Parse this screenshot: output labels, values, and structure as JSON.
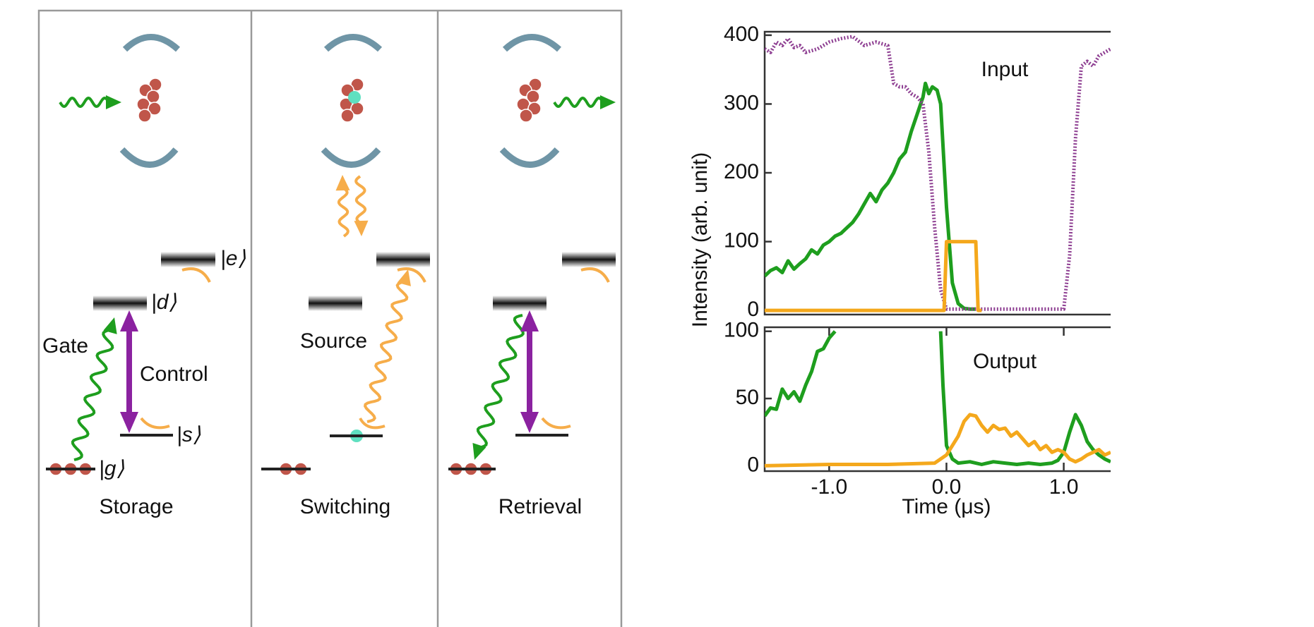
{
  "diagram": {
    "captions": [
      "Storage",
      "Switching",
      "Retrieval"
    ],
    "levels": {
      "e": "|e⟩",
      "d": "|d⟩",
      "s": "|s⟩",
      "g": "|g⟩"
    },
    "labels": {
      "gate": "Gate",
      "control": "Control",
      "source": "Source"
    }
  },
  "chart_data": [
    {
      "type": "line",
      "annotation": "Input",
      "ylabel": "Intensity (arb. unit)",
      "xlim": [
        -1.55,
        1.4
      ],
      "ylim": [
        -6,
        405
      ],
      "yticks": [
        0,
        100,
        200,
        300,
        400
      ],
      "series": [
        {
          "color": "#1e9e1e",
          "x": [
            -1.55,
            -1.5,
            -1.45,
            -1.4,
            -1.35,
            -1.3,
            -1.25,
            -1.2,
            -1.15,
            -1.1,
            -1.05,
            -1.0,
            -0.95,
            -0.9,
            -0.85,
            -0.8,
            -0.75,
            -0.7,
            -0.65,
            -0.6,
            -0.55,
            -0.5,
            -0.45,
            -0.4,
            -0.35,
            -0.3,
            -0.25,
            -0.2,
            -0.18,
            -0.15,
            -0.12,
            -0.08,
            -0.05,
            0.0,
            0.05,
            0.1,
            0.15,
            0.2,
            0.25
          ],
          "values": [
            50,
            58,
            62,
            55,
            72,
            60,
            68,
            75,
            88,
            82,
            95,
            100,
            108,
            112,
            120,
            128,
            140,
            155,
            170,
            158,
            175,
            185,
            200,
            220,
            230,
            260,
            285,
            310,
            330,
            315,
            325,
            320,
            300,
            150,
            40,
            10,
            3,
            2,
            2
          ]
        },
        {
          "color": "#8e3f92",
          "style": "dotted",
          "x": [
            -1.55,
            -1.5,
            -1.45,
            -1.4,
            -1.35,
            -1.3,
            -1.25,
            -1.2,
            -1.1,
            -1.0,
            -0.9,
            -0.8,
            -0.7,
            -0.6,
            -0.5,
            -0.45,
            -0.4,
            -0.35,
            -0.3,
            -0.25,
            -0.2,
            -0.15,
            -0.1,
            -0.05,
            0.0,
            0.5,
            1.0,
            1.05,
            1.1,
            1.15,
            1.2,
            1.25,
            1.3,
            1.35,
            1.4
          ],
          "values": [
            380,
            375,
            390,
            385,
            395,
            382,
            385,
            375,
            380,
            390,
            395,
            398,
            385,
            390,
            385,
            330,
            325,
            325,
            315,
            310,
            300,
            230,
            120,
            30,
            2,
            2,
            2,
            80,
            250,
            355,
            362,
            355,
            370,
            375,
            380
          ]
        },
        {
          "color": "#f4a81c",
          "x": [
            -1.55,
            -0.02,
            0.0,
            0.25,
            0.27,
            0.3
          ],
          "values": [
            0,
            0,
            100,
            100,
            0,
            0
          ]
        }
      ]
    },
    {
      "type": "line",
      "annotation": "Output",
      "xlabel": "Time (μs)",
      "xlim": [
        -1.55,
        1.4
      ],
      "ylim": [
        -4,
        103
      ],
      "yticks": [
        0,
        50,
        100
      ],
      "xticks": [
        {
          "value": -1,
          "label": "-1.0"
        },
        {
          "value": 0,
          "label": "0.0"
        },
        {
          "value": 1,
          "label": "1.0"
        }
      ],
      "series": [
        {
          "color": "#1e9e1e",
          "x": [
            -1.55,
            -1.5,
            -1.45,
            -1.4,
            -1.35,
            -1.3,
            -1.25,
            -1.2,
            -1.15,
            -1.1,
            -1.05,
            -1.0,
            -0.95,
            -0.5,
            -0.05,
            -0.03,
            0.0,
            0.05,
            0.1,
            0.2,
            0.3,
            0.4,
            0.5,
            0.6,
            0.7,
            0.8,
            0.9,
            0.95,
            1.0,
            1.05,
            1.1,
            1.15,
            1.2,
            1.25,
            1.3,
            1.35,
            1.4
          ],
          "values": [
            37,
            43,
            42,
            57,
            50,
            55,
            48,
            60,
            70,
            85,
            87,
            95,
            100,
            null,
            100,
            60,
            15,
            5,
            2,
            3,
            1,
            3,
            2,
            1,
            2,
            1,
            2,
            4,
            10,
            25,
            38,
            30,
            18,
            12,
            8,
            5,
            3
          ]
        },
        {
          "color": "#f4a81c",
          "x": [
            -1.55,
            -1.0,
            -0.5,
            -0.1,
            0.0,
            0.05,
            0.1,
            0.15,
            0.2,
            0.25,
            0.3,
            0.35,
            0.4,
            0.45,
            0.5,
            0.55,
            0.6,
            0.65,
            0.7,
            0.75,
            0.8,
            0.85,
            0.9,
            0.95,
            1.0,
            1.05,
            1.1,
            1.15,
            1.2,
            1.25,
            1.3,
            1.35,
            1.4
          ],
          "values": [
            0,
            1,
            1,
            2,
            8,
            15,
            22,
            33,
            38,
            37,
            30,
            25,
            30,
            27,
            28,
            22,
            25,
            20,
            15,
            18,
            12,
            15,
            10,
            12,
            10,
            5,
            3,
            5,
            8,
            10,
            12,
            8,
            10
          ]
        }
      ]
    }
  ]
}
